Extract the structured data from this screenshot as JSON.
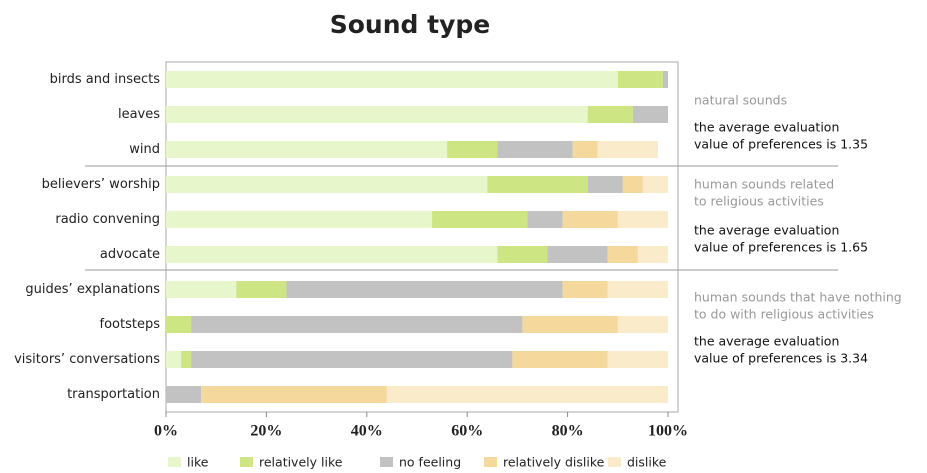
{
  "chart_data": {
    "type": "stacked-bar-horizontal",
    "title": "Sound type",
    "categories": [
      "birds and insects",
      "leaves",
      "wind",
      "believers’ worship",
      "radio convening",
      "advocate",
      "guides’ explanations",
      "footsteps",
      "visitors’ conversations",
      "transportation"
    ],
    "series": [
      {
        "name": "like",
        "color": "#e8f6cc",
        "values": [
          90,
          84,
          56,
          64,
          53,
          66,
          14,
          0,
          3,
          0
        ]
      },
      {
        "name": "relatively like",
        "color": "#cde683",
        "values": [
          9,
          9,
          10,
          20,
          19,
          10,
          10,
          5,
          2,
          0
        ]
      },
      {
        "name": "no feeling",
        "color": "#c2c2c2",
        "values": [
          1,
          7,
          15,
          7,
          7,
          12,
          55,
          66,
          64,
          7
        ]
      },
      {
        "name": "relatively dislike",
        "color": "#f4d89c",
        "values": [
          0,
          0,
          5,
          4,
          11,
          6,
          9,
          19,
          19,
          37
        ]
      },
      {
        "name": "dislike",
        "color": "#faebcb",
        "values": [
          0,
          0,
          12,
          5,
          10,
          6,
          12,
          10,
          12,
          56
        ]
      }
    ],
    "xlim": [
      0,
      100
    ],
    "xticks": [
      {
        "value": 0,
        "label": "0%"
      },
      {
        "value": 20,
        "label": "20%"
      },
      {
        "value": 40,
        "label": "40%"
      },
      {
        "value": 60,
        "label": "60%"
      },
      {
        "value": 80,
        "label": "80%"
      },
      {
        "value": 100,
        "label": "100%"
      }
    ],
    "groups": [
      {
        "label": [
          "natural sounds"
        ],
        "note": [
          "the average evaluation",
          "value of preferences is 1.35"
        ]
      },
      {
        "label": [
          "human sounds related",
          "to religious activities"
        ],
        "note": [
          "the average evaluation",
          "value of preferences is 1.65"
        ]
      },
      {
        "label": [
          "human sounds that have nothing",
          "to do with religious activities"
        ],
        "note": [
          "the average evaluation",
          "value of preferences is 3.34"
        ]
      }
    ]
  }
}
